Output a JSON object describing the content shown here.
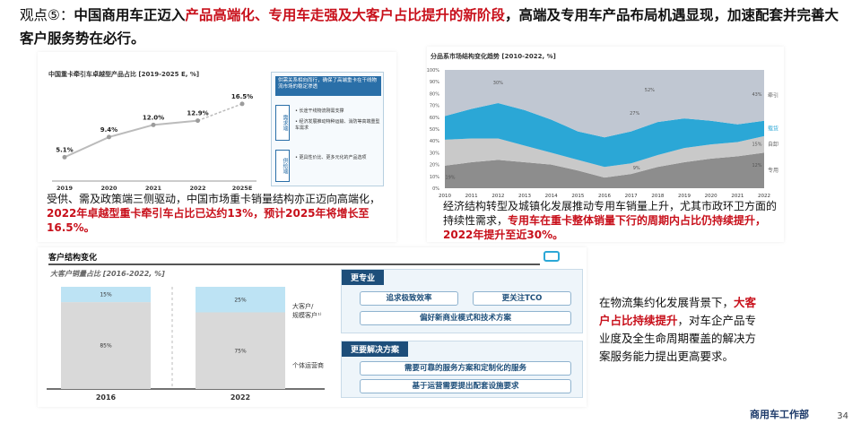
{
  "headline": {
    "lead": "观点⑤：",
    "p1": "中国商用车正迈入",
    "highlight": "产品高端化、专用车走强及大客户占比提升的新阶段",
    "p2": "，高端及专用车产品布局机遇显现，加速配套并完善大客户服务势在必行。"
  },
  "panel1": {
    "title": "中国重卡牵引车卓越型产品占比 [2019-2025 E, %]",
    "chart_data": {
      "type": "line",
      "categories": [
        "2019",
        "2020",
        "2021",
        "2022",
        "2025E"
      ],
      "values": [
        5.1,
        9.4,
        12.0,
        12.9,
        16.5
      ],
      "labels": [
        "5.1%",
        "9.4%",
        "12.0%",
        "12.9%",
        "16.5%"
      ],
      "forecast_from": "2022"
    },
    "side": {
      "header": "供需关系相向而行，确保了高端重卡在干线物流市场的稳定渗透",
      "demand_label": "需求端",
      "demand_items": [
        "• 长途干线物流刚需支撑",
        "• 经济发展推动特种运输、消防等高端重型车需求"
      ],
      "supply_label": "供给端",
      "supply_items": [
        "• 更具性价比、更多元化的产品选项"
      ]
    },
    "caption": {
      "t1": "受供、需及政策端三侧驱动，中国市场重卡销量结构亦正迈向高端化，",
      "t2": "2022年卓越型重卡牵引车占比已达约13%，预计2025年将增长至16.5%。"
    }
  },
  "panel2": {
    "title": "分品系市场结构变化趋势 [2010-2022, %]",
    "chart_data": {
      "type": "area",
      "x": [
        "2010",
        "2011",
        "2012",
        "2013",
        "2014",
        "2015",
        "2016",
        "2017",
        "2018",
        "2019",
        "2020",
        "2021",
        "2022"
      ],
      "ylim": [
        0,
        100
      ],
      "series": [
        {
          "name": "专用",
          "values": [
            19,
            22,
            24,
            22,
            20,
            15,
            9,
            12,
            18,
            22,
            25,
            27,
            30
          ],
          "color": "#8d8d8d"
        },
        {
          "name": "自卸",
          "values": [
            22,
            20,
            18,
            14,
            10,
            9,
            9,
            9,
            10,
            12,
            12,
            12,
            14
          ],
          "color": "#c9c9c9"
        },
        {
          "name": "载货",
          "values": [
            20,
            25,
            30,
            30,
            28,
            24,
            25,
            27,
            28,
            25,
            20,
            15,
            13
          ],
          "color": "#2ba7d6"
        },
        {
          "name": "牵引",
          "values": [
            39,
            33,
            28,
            34,
            42,
            52,
            57,
            52,
            44,
            41,
            43,
            46,
            43
          ],
          "color": "#c0c7d2"
        }
      ],
      "annotations": [
        "30%",
        "52%",
        "27%",
        "43%",
        "19%",
        "15%",
        "9%",
        "12%"
      ]
    },
    "caption": {
      "t1": "经济结构转型及城镇化发展推动专用车销量上升，尤其市政环卫方面的持续性需求，",
      "t2": "专用车在重卡整体销量下行的周期内占比仍持续提升，2022年提升至近30%。"
    }
  },
  "panel3": {
    "section_title": "客户结构变化",
    "chart_title": "大客户销量占比 [2016-2022, %]",
    "chart_data": {
      "type": "bar",
      "categories": [
        "2016",
        "2022"
      ],
      "series": [
        {
          "name": "个体运营商",
          "values": [
            85,
            75
          ],
          "color": "#d9d9d9"
        },
        {
          "name": "大客户/规模客户¹⁾",
          "values": [
            15,
            25
          ],
          "color": "#bde3f4"
        }
      ],
      "labels_top": [
        "15%",
        "25%"
      ],
      "labels_bottom": [
        "85%",
        "75%"
      ]
    },
    "legend_big": "大客户/ 规模客户¹⁾",
    "legend_small": "个体运营商",
    "box1": {
      "title": "更专业",
      "items": [
        "追求极致效率",
        "更关注TCO",
        "偏好新商业模式和技术方案"
      ]
    },
    "box2": {
      "title": "更要解决方案",
      "items": [
        "需要可靠的服务方案和定制化的服务",
        "基于运营需要提出配套设施要求"
      ]
    },
    "caption": {
      "t1": "在物流集约化发展背景下，",
      "t2": "大客户占比持续提升",
      "t3": "，对车企产品专业度及全生命周期覆盖的解决方案服务能力提出更高要求。"
    }
  },
  "footer": {
    "dept": "商用车工作部",
    "page": "34"
  }
}
